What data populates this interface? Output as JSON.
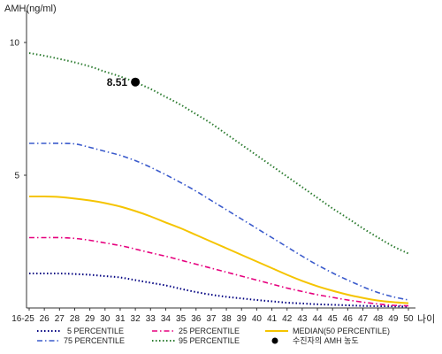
{
  "chart_data": {
    "type": "line",
    "ylabel": "AMH(ng/ml)",
    "xlabel": "나이",
    "categories": [
      "16-25",
      "26",
      "27",
      "28",
      "29",
      "30",
      "31",
      "32",
      "33",
      "34",
      "35",
      "36",
      "37",
      "38",
      "39",
      "40",
      "41",
      "42",
      "43",
      "44",
      "45",
      "46",
      "47",
      "48",
      "49",
      "50"
    ],
    "yticks": [
      "10",
      "5"
    ],
    "ylim": [
      0,
      11.2
    ],
    "grid": false,
    "legend_position": "bottom",
    "series": [
      {
        "name": "5 PERCENTILE",
        "color": "#000080",
        "style": "dotted",
        "values": [
          1.3,
          1.3,
          1.3,
          1.28,
          1.25,
          1.2,
          1.15,
          1.05,
          0.95,
          0.85,
          0.72,
          0.6,
          0.5,
          0.42,
          0.36,
          0.3,
          0.25,
          0.2,
          0.17,
          0.14,
          0.12,
          0.1,
          0.08,
          0.07,
          0.06,
          0.05
        ]
      },
      {
        "name": "25 PERCENTILE",
        "color": "#e6007e",
        "style": "dashdot",
        "values": [
          2.65,
          2.65,
          2.65,
          2.62,
          2.55,
          2.45,
          2.35,
          2.22,
          2.08,
          1.95,
          1.8,
          1.65,
          1.5,
          1.35,
          1.2,
          1.05,
          0.9,
          0.75,
          0.62,
          0.5,
          0.4,
          0.3,
          0.22,
          0.15,
          0.1,
          0.08
        ]
      },
      {
        "name": "MEDIAN(50 PERCENTILE)",
        "color": "#f5c400",
        "style": "solid",
        "values": [
          4.2,
          4.2,
          4.18,
          4.12,
          4.05,
          3.95,
          3.82,
          3.65,
          3.45,
          3.22,
          3.0,
          2.75,
          2.5,
          2.25,
          2.0,
          1.75,
          1.5,
          1.25,
          1.02,
          0.82,
          0.65,
          0.5,
          0.38,
          0.28,
          0.22,
          0.18
        ]
      },
      {
        "name": "75 PERCENTILE",
        "color": "#3b5bcc",
        "style": "dashdot",
        "values": [
          6.2,
          6.2,
          6.2,
          6.18,
          6.05,
          5.9,
          5.75,
          5.55,
          5.3,
          5.02,
          4.72,
          4.4,
          4.05,
          3.7,
          3.35,
          3.0,
          2.65,
          2.3,
          1.95,
          1.62,
          1.32,
          1.05,
          0.8,
          0.58,
          0.42,
          0.3
        ]
      },
      {
        "name": "95 PERCENTILE",
        "color": "#2e7d32",
        "style": "dotted",
        "values": [
          9.6,
          9.5,
          9.38,
          9.25,
          9.1,
          8.9,
          8.72,
          8.5,
          8.25,
          7.95,
          7.65,
          7.3,
          6.95,
          6.55,
          6.15,
          5.75,
          5.35,
          4.95,
          4.55,
          4.15,
          3.75,
          3.38,
          3.0,
          2.65,
          2.32,
          2.05
        ]
      }
    ],
    "marker": {
      "label": "8.51",
      "legend": "수진자의 AMH 농도",
      "x": "32",
      "y": 8.51,
      "color": "#000000"
    }
  }
}
